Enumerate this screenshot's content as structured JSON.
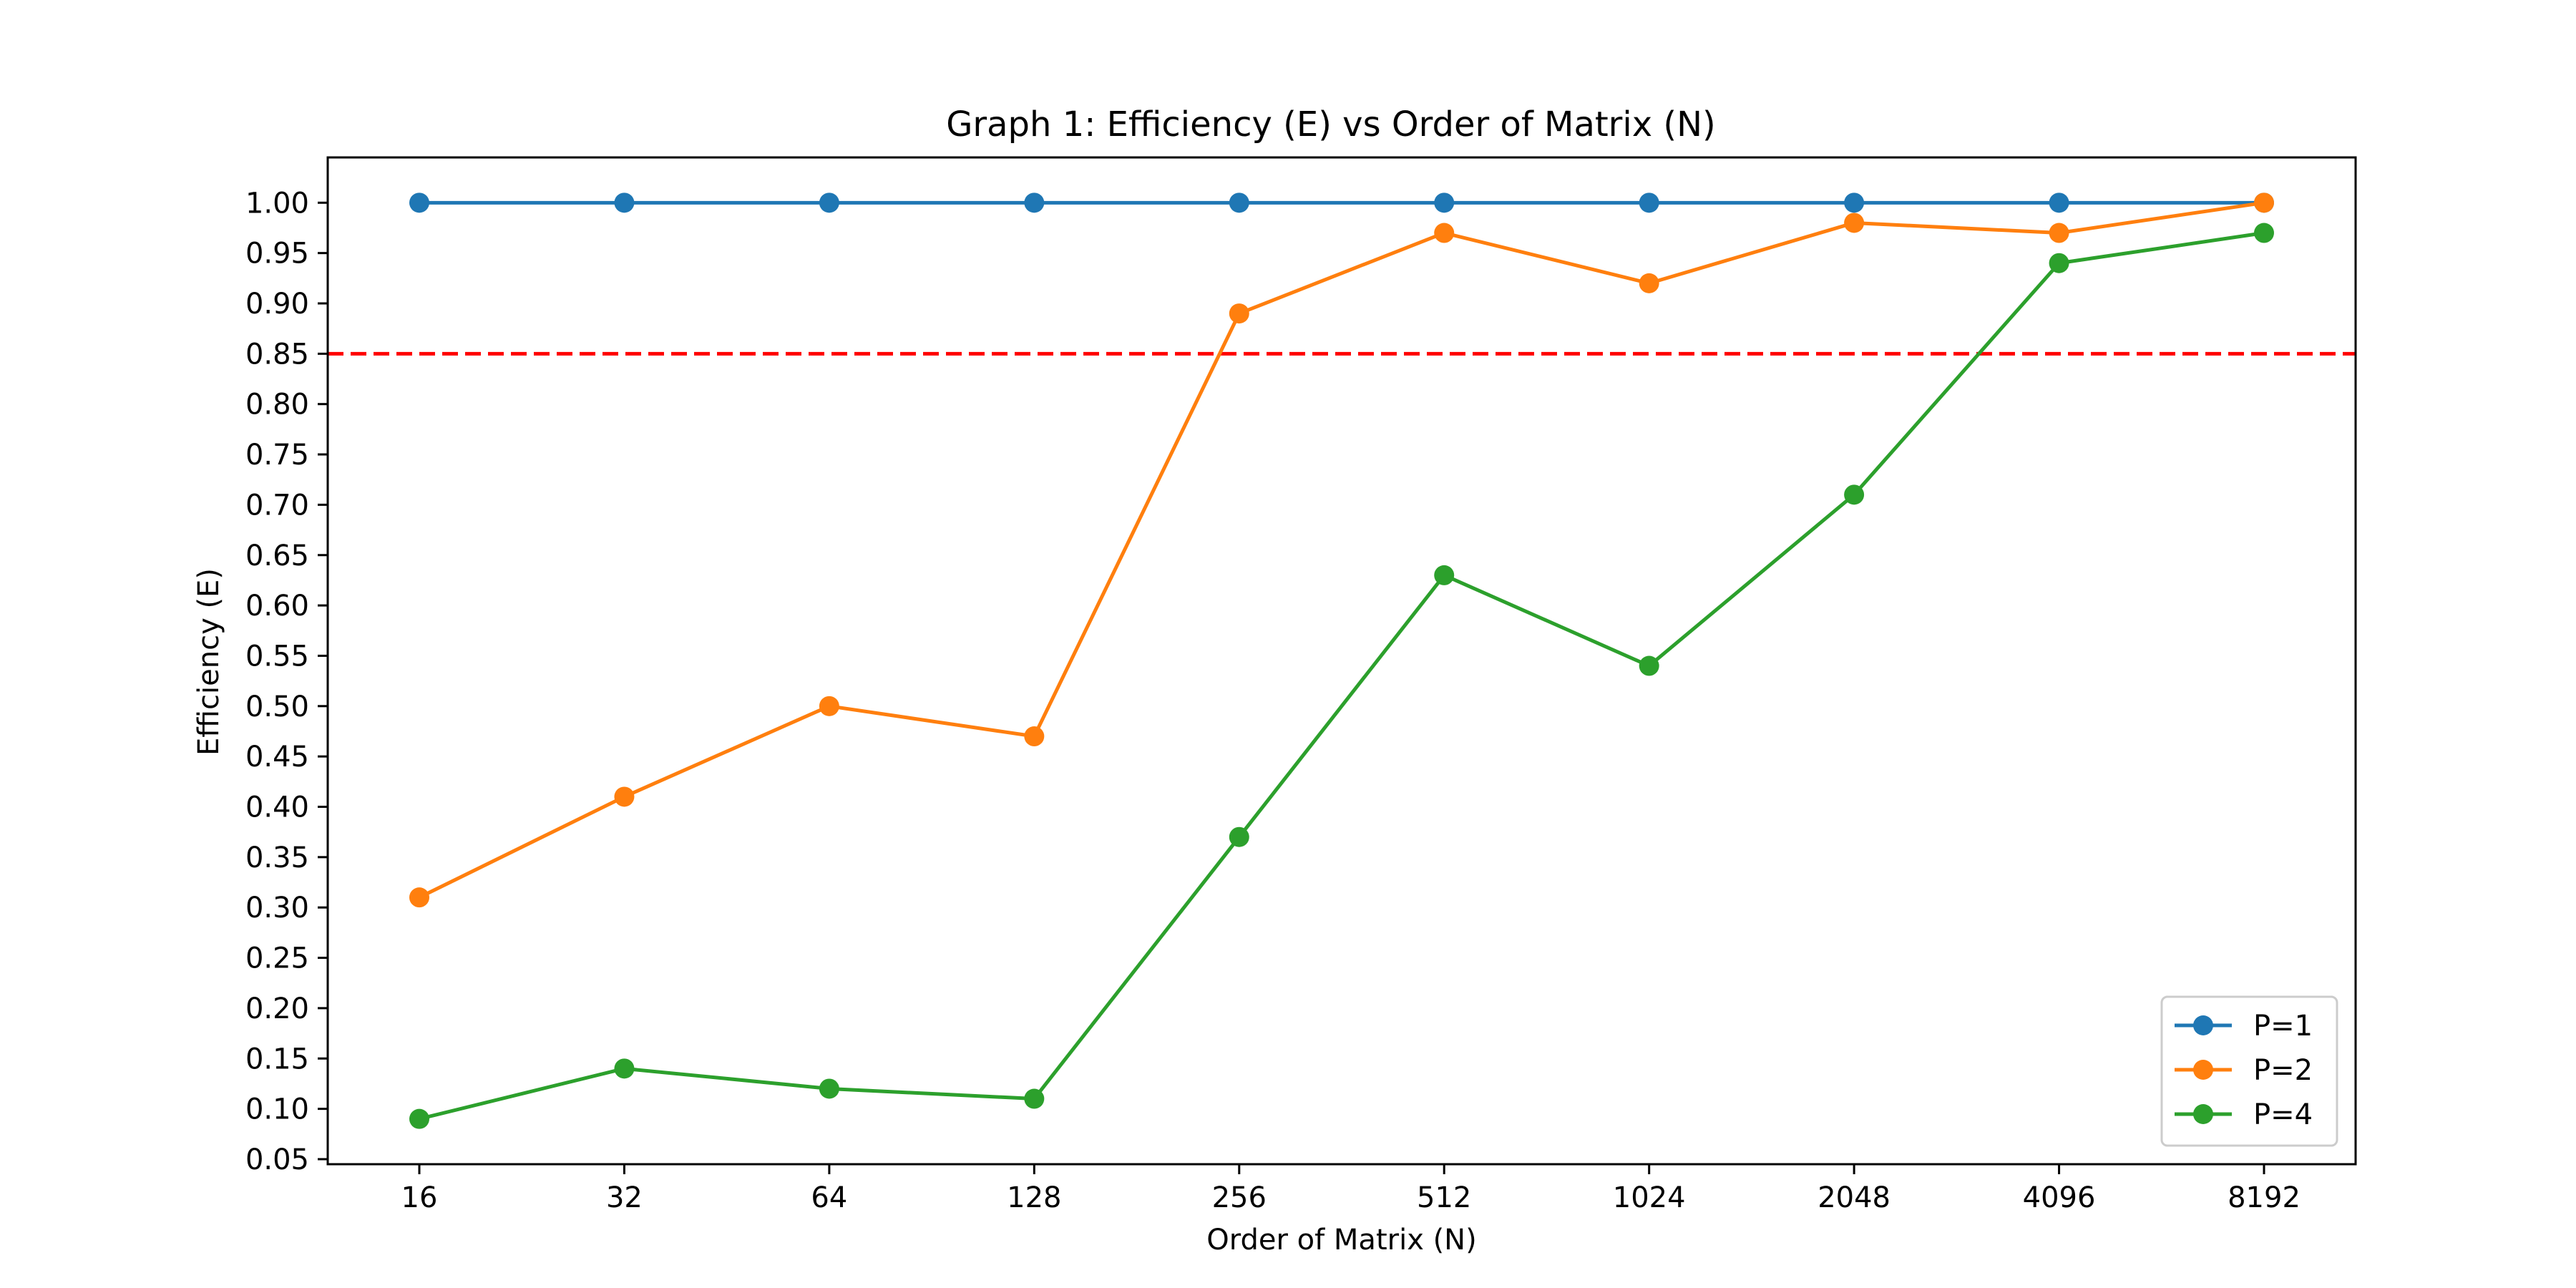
{
  "chart_data": {
    "type": "line",
    "title": "Graph 1: Efficiency (E) vs Order of Matrix (N)",
    "xlabel": "Order of Matrix (N)",
    "ylabel": "Efficiency (E)",
    "categories": [
      "16",
      "32",
      "64",
      "128",
      "256",
      "512",
      "1024",
      "2048",
      "4096",
      "8192"
    ],
    "ylim": [
      0.045,
      1.045
    ],
    "y_ticks": [
      0.05,
      0.1,
      0.15,
      0.2,
      0.25,
      0.3,
      0.35,
      0.4,
      0.45,
      0.5,
      0.55,
      0.6,
      0.65,
      0.7,
      0.75,
      0.8,
      0.85,
      0.9,
      0.95,
      1.0
    ],
    "grid": false,
    "legend_position": "lower right",
    "series": [
      {
        "name": "P=1",
        "color": "#1f77b4",
        "marker": "circle",
        "values": [
          1.0,
          1.0,
          1.0,
          1.0,
          1.0,
          1.0,
          1.0,
          1.0,
          1.0,
          1.0
        ]
      },
      {
        "name": "P=2",
        "color": "#ff7f0e",
        "marker": "circle",
        "values": [
          0.31,
          0.41,
          0.5,
          0.47,
          0.89,
          0.97,
          0.92,
          0.98,
          0.97,
          1.0
        ]
      },
      {
        "name": "P=4",
        "color": "#2ca02c",
        "marker": "circle",
        "values": [
          0.09,
          0.14,
          0.12,
          0.11,
          0.37,
          0.63,
          0.54,
          0.71,
          0.94,
          0.97
        ]
      }
    ],
    "reference_lines": [
      {
        "axis": "y",
        "value": 0.85,
        "color": "#ff0000",
        "style": "dashed"
      }
    ]
  }
}
